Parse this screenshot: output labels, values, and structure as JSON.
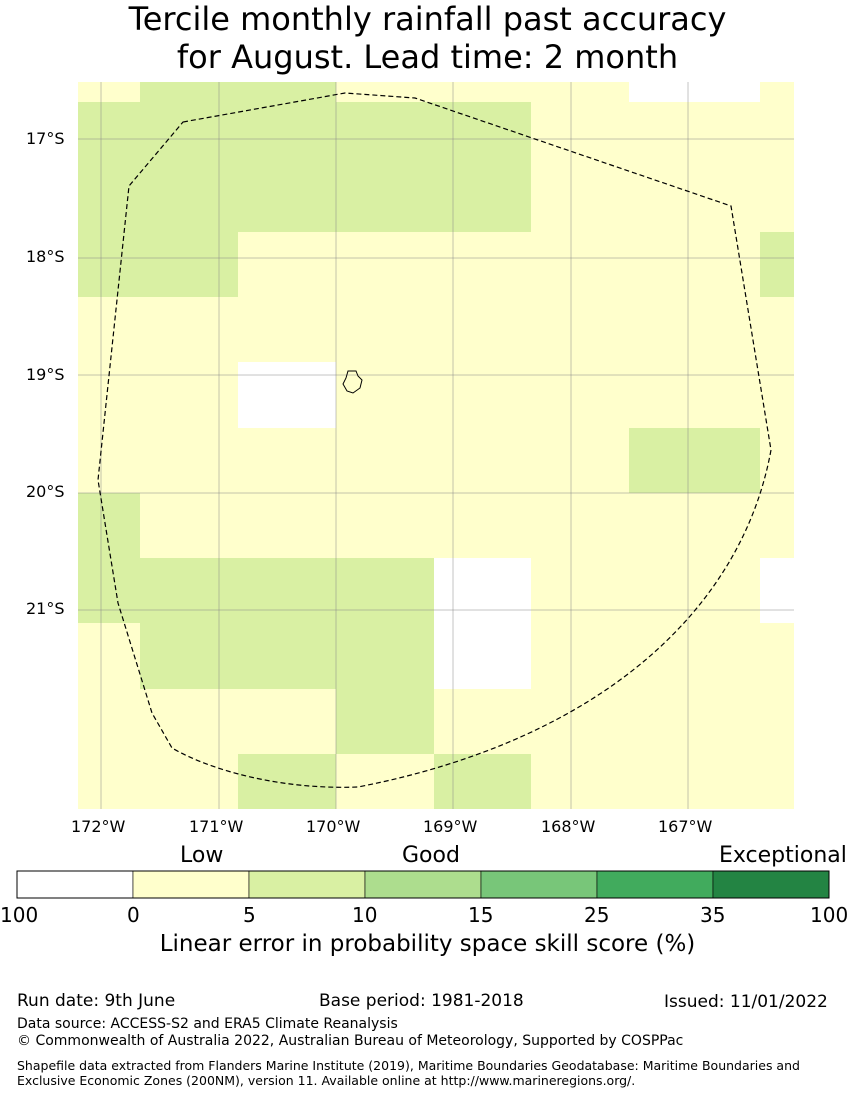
{
  "title": {
    "line1": "Tercile monthly rainfall past accuracy",
    "line2": "for August. Lead time: 2 month"
  },
  "map": {
    "lat_labels": [
      "17°S",
      "18°S",
      "19°S",
      "20°S",
      "21°S"
    ],
    "lon_labels": [
      "172°W",
      "171°W",
      "170°W",
      "169°W",
      "168°W",
      "167°W"
    ],
    "grid": true,
    "cell_values_rows_north_to_south": [
      [
        "low",
        "good",
        "good",
        "low",
        "low",
        "low",
        "none",
        "none",
        "low"
      ],
      [
        "good",
        "good",
        "good",
        "good",
        "good",
        "low",
        "low",
        "low",
        "low"
      ],
      [
        "good",
        "good",
        "good",
        "good",
        "good",
        "low",
        "low",
        "low",
        "low"
      ],
      [
        "good",
        "good",
        "low",
        "low",
        "low",
        "low",
        "low",
        "low",
        "good"
      ],
      [
        "low",
        "low",
        "low",
        "low",
        "low",
        "low",
        "low",
        "low",
        "low"
      ],
      [
        "low",
        "low",
        "none",
        "low",
        "low",
        "low",
        "low",
        "low",
        "low"
      ],
      [
        "low",
        "low",
        "low",
        "low",
        "low",
        "low",
        "good",
        "good",
        "low"
      ],
      [
        "good",
        "low",
        "low",
        "low",
        "low",
        "low",
        "low",
        "low",
        "low"
      ],
      [
        "good",
        "good",
        "good",
        "good",
        "none",
        "low",
        "low",
        "low",
        "none"
      ],
      [
        "low",
        "good",
        "good",
        "good",
        "none",
        "low",
        "low",
        "low",
        "low"
      ],
      [
        "low",
        "low",
        "low",
        "good",
        "low",
        "low",
        "low",
        "low",
        "low"
      ],
      [
        "low",
        "low",
        "good",
        "low",
        "good",
        "low",
        "low",
        "low",
        "low"
      ],
      [
        "low",
        "low",
        "low",
        "good",
        "low",
        "low",
        "low",
        "low",
        "low"
      ]
    ]
  },
  "legend": {
    "categories": [
      "Low",
      "Good",
      "Exceptional"
    ],
    "ticks": [
      "100",
      "0",
      "5",
      "10",
      "15",
      "25",
      "35",
      "100"
    ],
    "colors": [
      "#ffffff",
      "#ffffcc",
      "#d9f0a3",
      "#addd8e",
      "#78c679",
      "#41ab5d",
      "#238443"
    ],
    "label": "Linear error in probability space skill score (%)"
  },
  "colors": {
    "none": "#ffffff",
    "low": "#ffffcc",
    "good": "#d9f0a3"
  },
  "footer": {
    "run_date": "Run date: 9th June",
    "base_period": "Base period: 1981-2018",
    "issued": "Issued: 11/01/2022",
    "data_source": "Data source: ACCESS-S2 and ERA5 Climate Reanalysis",
    "copyright": "© Commonwealth of Australia 2022, Australian Bureau of Meteorology, Supported by COSPPac",
    "shapefile": "Shapefile data extracted from Flanders Marine Institute (2019), Maritime Boundaries Geodatabase: Maritime Boundaries and Exclusive Economic Zones (200NM), version 11. Available online at http://www.marineregions.org/."
  }
}
